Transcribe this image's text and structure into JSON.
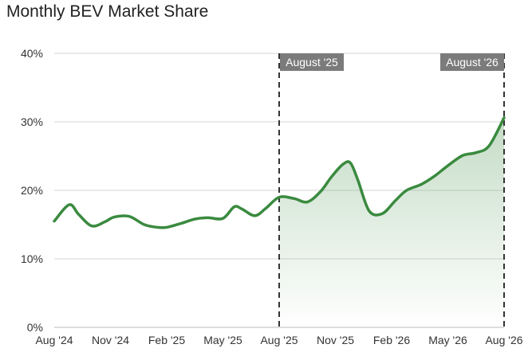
{
  "chart_data": {
    "type": "area",
    "title": "Monthly BEV Market Share",
    "xlabel": "",
    "ylabel": "",
    "ylim": [
      0,
      40
    ],
    "y_ticks": [
      0,
      10,
      20,
      30,
      40
    ],
    "y_tick_labels": [
      "0%",
      "10%",
      "20%",
      "30%",
      "40%"
    ],
    "x_tick_labels": [
      "Aug '24",
      "Nov '24",
      "Feb '25",
      "May '25",
      "Aug '25",
      "Nov '25",
      "Feb '26",
      "May '26",
      "Aug '26"
    ],
    "grid": true,
    "line_color": "#3a8a3f",
    "fill_color": "#3a8a3f",
    "markers": [
      {
        "label": "August '25",
        "x": 12
      },
      {
        "label": "August '26",
        "x": 24
      }
    ],
    "series": [
      {
        "x": [
          0,
          0.8,
          1.3,
          2,
          2.7,
          3.2,
          4,
          4.8,
          5.5,
          6,
          6.8,
          7.5,
          8.2,
          9,
          9.6,
          10,
          10.7,
          11.3,
          12,
          12.8,
          13.5,
          14.2,
          14.8,
          15.4,
          15.8,
          16.2,
          16.8,
          17.5,
          18.2,
          18.8,
          19.6,
          20.3,
          21,
          21.8,
          22.5,
          23.2,
          24
        ],
        "values": [
          15.5,
          17.9,
          16.5,
          14.8,
          15.4,
          16.1,
          16.2,
          15.0,
          14.6,
          14.6,
          15.2,
          15.8,
          16.0,
          15.9,
          17.6,
          17.3,
          16.3,
          17.4,
          19.0,
          18.8,
          18.3,
          19.8,
          22.0,
          23.8,
          24.0,
          21.5,
          17.0,
          16.6,
          18.5,
          20.0,
          20.9,
          22.1,
          23.6,
          25.1,
          25.5,
          26.5,
          30.6
        ]
      }
    ]
  }
}
